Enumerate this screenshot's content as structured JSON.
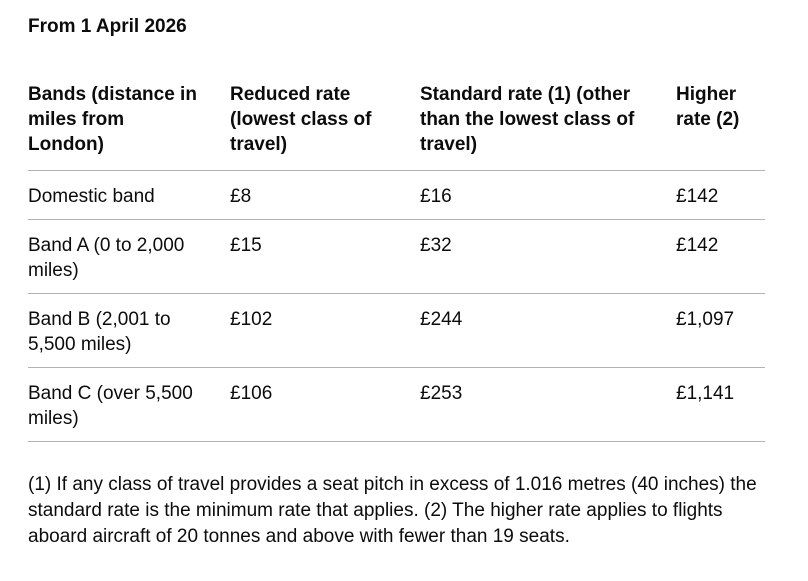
{
  "page": {
    "heading": "From 1 April 2026"
  },
  "table": {
    "columns": [
      "Bands (distance in miles from London)",
      "Reduced rate (lowest class of travel)",
      "Standard rate (1) (other than the lowest class of travel)",
      "Higher rate (2)"
    ],
    "rows": [
      {
        "band": "Domestic band",
        "reduced": "£8",
        "standard": "£16",
        "higher": "£142"
      },
      {
        "band": "Band A (0 to 2,000 miles)",
        "reduced": "£15",
        "standard": "£32",
        "higher": "£142"
      },
      {
        "band": "Band B (2,001 to 5,500 miles)",
        "reduced": "£102",
        "standard": "£244",
        "higher": "£1,097"
      },
      {
        "band": "Band C (over 5,500 miles)",
        "reduced": "£106",
        "standard": "£253",
        "higher": "£1,141"
      }
    ]
  },
  "footnote": "(1) If any class of travel provides a seat pitch in excess of 1.016 metres (40 inches) the standard rate is the minimum rate that applies. (2) The higher rate applies to flights aboard aircraft of 20 tonnes and above with fewer than 19 seats.",
  "colors": {
    "text": "#0b0c0c",
    "border": "#b1b4b6",
    "background": "#ffffff"
  }
}
